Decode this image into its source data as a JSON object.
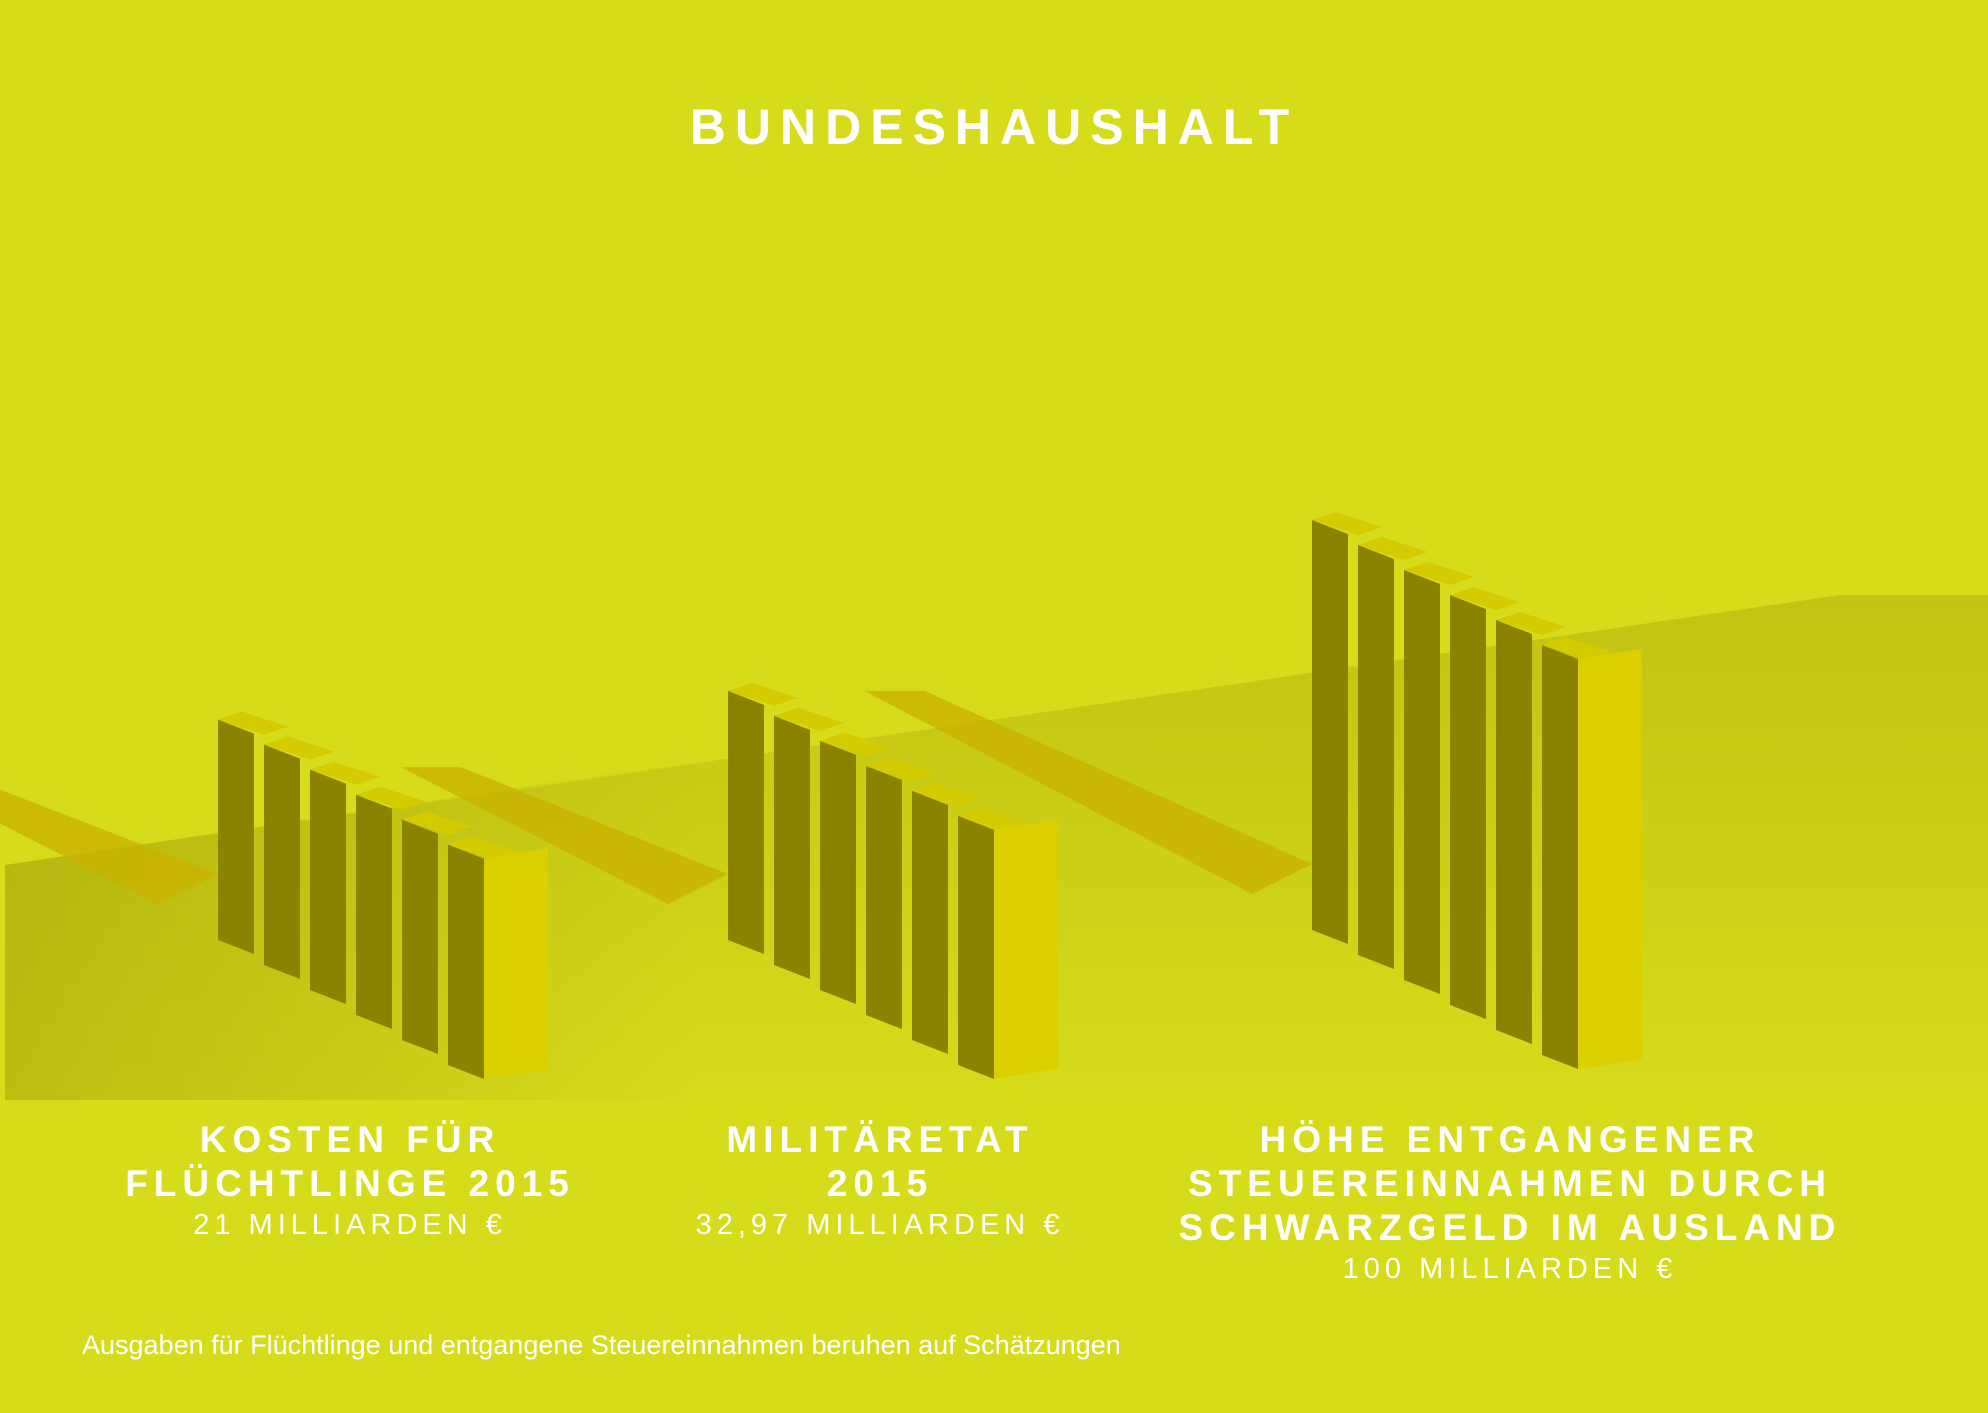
{
  "title": "BUNDESHAUSHALT",
  "footnote": "Ausgaben für Flüchtlinge und entgangene Steuereinnahmen beruhen auf Schätzungen",
  "colors": {
    "background": "#d6dc1a",
    "bar_front": "#dccf00",
    "bar_side": "#8a8300",
    "bar_top": "#d4cb00",
    "shadow": "#c9b200",
    "text": "#ffffff"
  },
  "items": [
    {
      "label_lines": [
        "KOSTEN FÜR",
        "FLÜCHTLINGE 2015"
      ],
      "value_text": "21 MILLIARDEN €"
    },
    {
      "label_lines": [
        "MILITÄRETAT",
        "2015"
      ],
      "value_text": "32,97 MILLIARDEN €"
    },
    {
      "label_lines": [
        "HÖHE ENTGANGENER",
        "STEUEREINNAHMEN DURCH",
        "SCHWARZGELD IM AUSLAND"
      ],
      "value_text": "100 MILLIARDEN €"
    }
  ],
  "chart_data": {
    "type": "bar",
    "title": "BUNDESHAUSHALT",
    "categories": [
      "KOSTEN FÜR FLÜCHTLINGE 2015",
      "MILITÄRETAT 2015",
      "HÖHE ENTGANGENER STEUEREINNAHMEN DURCH SCHWARZGELD IM AUSLAND"
    ],
    "values": [
      21,
      32.97,
      100
    ],
    "unit": "MILLIARDEN €"
  }
}
